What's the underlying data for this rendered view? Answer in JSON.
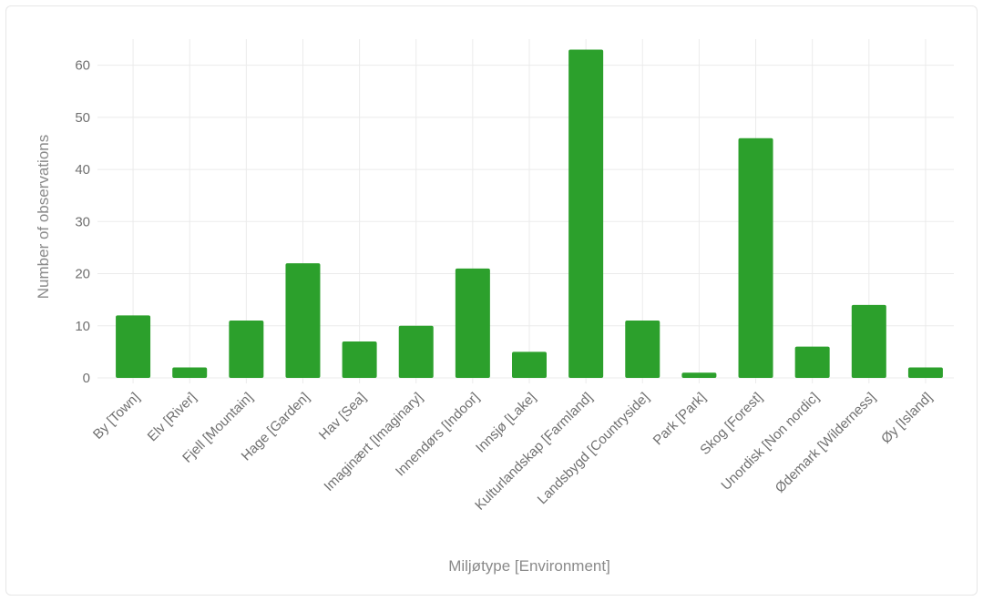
{
  "chart_data": {
    "type": "bar",
    "categories": [
      "By [Town]",
      "Elv [River]",
      "Fjell [Mountain]",
      "Hage [Garden]",
      "Hav [Sea]",
      "Imaginært [Imaginary]",
      "Innendørs [Indoor]",
      "Innsjø [Lake]",
      "Kulturlandskap [Farmland]",
      "Landsbygd [Countryside]",
      "Park [Park]",
      "Skog [Forest]",
      "Unordisk [Non nordic]",
      "Ødemark [Wilderness]",
      "Øy [Island]"
    ],
    "values": [
      12,
      2,
      11,
      22,
      7,
      10,
      21,
      5,
      63,
      11,
      1,
      46,
      6,
      14,
      2
    ],
    "xlabel": "Miljøtype [Environment]",
    "ylabel": "Number of observations",
    "ylim": [
      0,
      65
    ],
    "yticks": [
      0,
      10,
      20,
      30,
      40,
      50,
      60
    ],
    "grid": true,
    "bar_color": "#2ca02c",
    "grid_color": "#ebebeb"
  }
}
